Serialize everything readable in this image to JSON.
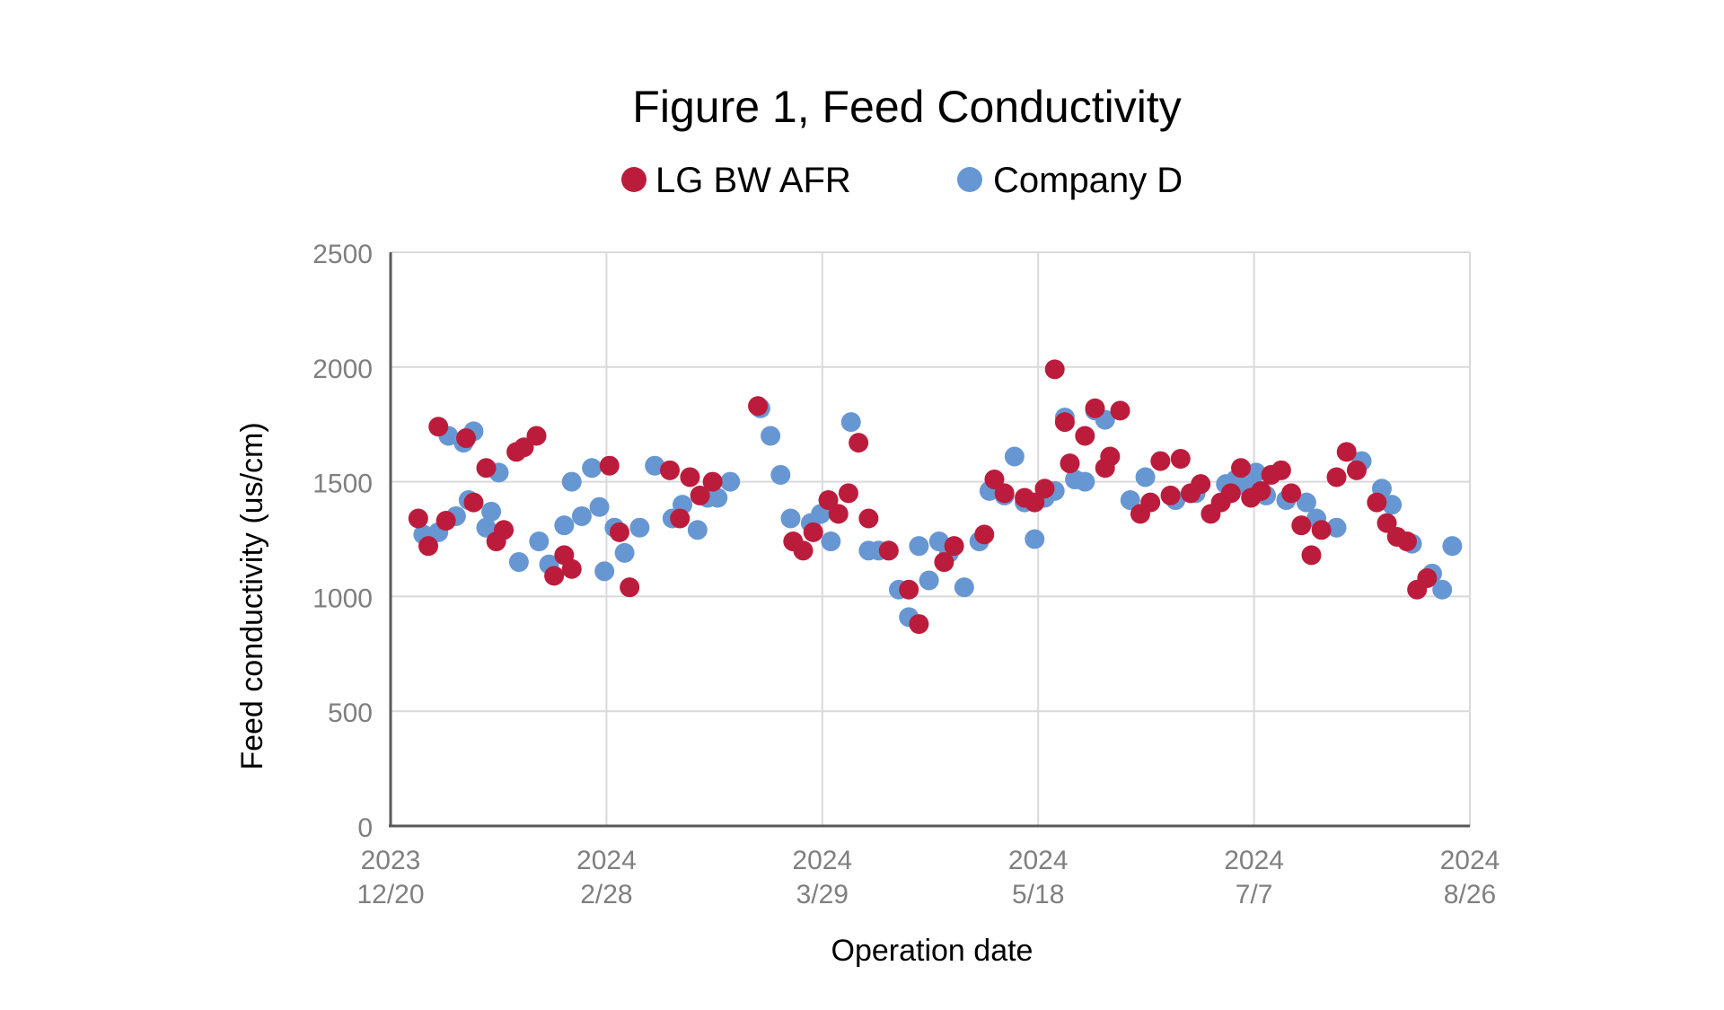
{
  "chart_data": {
    "type": "scatter",
    "title": "Figure 1, Feed Conductivity",
    "xlabel": "Operation date",
    "ylabel": "Feed conductivity (us/cm)",
    "x_ticks": [
      {
        "top": "2023",
        "bottom": "12/20"
      },
      {
        "top": "2024",
        "bottom": "2/28"
      },
      {
        "top": "2024",
        "bottom": "3/29"
      },
      {
        "top": "2024",
        "bottom": "5/18"
      },
      {
        "top": "2024",
        "bottom": "7/7"
      },
      {
        "top": "2024",
        "bottom": "8/26"
      }
    ],
    "y_ticks": [
      "0",
      "500",
      "1000",
      "1500",
      "2000",
      "2500"
    ],
    "ylim": [
      0,
      2500
    ],
    "grid": true,
    "legend_position": "top-center",
    "series": [
      {
        "name": "Company D",
        "color": "#6797d3",
        "points": [
          [
            1.3,
            1270
          ],
          [
            1.9,
            1280
          ],
          [
            2.3,
            1700
          ],
          [
            2.6,
            1350
          ],
          [
            2.9,
            1670
          ],
          [
            3.1,
            1420
          ],
          [
            3.3,
            1720
          ],
          [
            3.8,
            1300
          ],
          [
            4.0,
            1370
          ],
          [
            4.3,
            1540
          ],
          [
            5.1,
            1150
          ],
          [
            5.9,
            1240
          ],
          [
            6.3,
            1140
          ],
          [
            6.9,
            1310
          ],
          [
            7.2,
            1500
          ],
          [
            7.6,
            1350
          ],
          [
            8.0,
            1560
          ],
          [
            8.3,
            1390
          ],
          [
            8.5,
            1110
          ],
          [
            8.9,
            1300
          ],
          [
            9.3,
            1190
          ],
          [
            9.9,
            1300
          ],
          [
            10.5,
            1570
          ],
          [
            11.2,
            1340
          ],
          [
            11.6,
            1400
          ],
          [
            12.2,
            1290
          ],
          [
            12.6,
            1430
          ],
          [
            13.0,
            1430
          ],
          [
            13.5,
            1500
          ],
          [
            14.7,
            1820
          ],
          [
            15.1,
            1700
          ],
          [
            15.5,
            1530
          ],
          [
            15.9,
            1340
          ],
          [
            16.7,
            1320
          ],
          [
            17.1,
            1360
          ],
          [
            17.5,
            1240
          ],
          [
            18.3,
            1760
          ],
          [
            19.0,
            1200
          ],
          [
            19.4,
            1200
          ],
          [
            19.8,
            1200
          ],
          [
            20.2,
            1030
          ],
          [
            20.6,
            910
          ],
          [
            21.0,
            1220
          ],
          [
            21.4,
            1070
          ],
          [
            21.8,
            1240
          ],
          [
            22.2,
            1190
          ],
          [
            22.8,
            1040
          ],
          [
            23.4,
            1240
          ],
          [
            23.8,
            1460
          ],
          [
            24.4,
            1440
          ],
          [
            24.8,
            1610
          ],
          [
            25.2,
            1410
          ],
          [
            25.6,
            1250
          ],
          [
            26.0,
            1430
          ],
          [
            26.4,
            1460
          ],
          [
            26.8,
            1780
          ],
          [
            27.2,
            1510
          ],
          [
            27.6,
            1500
          ],
          [
            28.0,
            1810
          ],
          [
            28.4,
            1770
          ],
          [
            29.4,
            1420
          ],
          [
            30.0,
            1520
          ],
          [
            31.2,
            1420
          ],
          [
            32.0,
            1450
          ],
          [
            33.2,
            1490
          ],
          [
            33.6,
            1510
          ],
          [
            34.0,
            1480
          ],
          [
            34.4,
            1540
          ],
          [
            34.8,
            1440
          ],
          [
            35.6,
            1420
          ],
          [
            36.4,
            1410
          ],
          [
            36.8,
            1340
          ],
          [
            37.6,
            1300
          ],
          [
            38.6,
            1590
          ],
          [
            39.4,
            1470
          ],
          [
            39.8,
            1400
          ],
          [
            40.6,
            1230
          ],
          [
            41.4,
            1100
          ],
          [
            41.8,
            1030
          ],
          [
            42.2,
            1220
          ]
        ]
      },
      {
        "name": "LG BW AFR",
        "color": "#bc1c3c",
        "points": [
          [
            1.1,
            1340
          ],
          [
            1.5,
            1220
          ],
          [
            1.9,
            1740
          ],
          [
            2.2,
            1330
          ],
          [
            3.0,
            1690
          ],
          [
            3.3,
            1410
          ],
          [
            3.8,
            1560
          ],
          [
            4.2,
            1240
          ],
          [
            4.5,
            1290
          ],
          [
            5.0,
            1630
          ],
          [
            5.3,
            1650
          ],
          [
            5.8,
            1700
          ],
          [
            6.5,
            1090
          ],
          [
            6.9,
            1180
          ],
          [
            7.2,
            1120
          ],
          [
            8.7,
            1570
          ],
          [
            9.1,
            1280
          ],
          [
            9.5,
            1040
          ],
          [
            11.1,
            1550
          ],
          [
            11.5,
            1340
          ],
          [
            11.9,
            1520
          ],
          [
            12.3,
            1440
          ],
          [
            12.8,
            1500
          ],
          [
            14.6,
            1830
          ],
          [
            16.0,
            1240
          ],
          [
            16.4,
            1200
          ],
          [
            16.8,
            1280
          ],
          [
            17.4,
            1420
          ],
          [
            17.8,
            1360
          ],
          [
            18.2,
            1450
          ],
          [
            18.6,
            1670
          ],
          [
            19.0,
            1340
          ],
          [
            19.8,
            1200
          ],
          [
            20.6,
            1030
          ],
          [
            21.0,
            880
          ],
          [
            22.0,
            1150
          ],
          [
            22.4,
            1220
          ],
          [
            23.6,
            1270
          ],
          [
            24.0,
            1510
          ],
          [
            24.4,
            1450
          ],
          [
            25.2,
            1430
          ],
          [
            25.6,
            1410
          ],
          [
            26.0,
            1470
          ],
          [
            26.4,
            1990
          ],
          [
            26.8,
            1760
          ],
          [
            27.0,
            1580
          ],
          [
            27.6,
            1700
          ],
          [
            28.0,
            1820
          ],
          [
            28.4,
            1560
          ],
          [
            28.6,
            1610
          ],
          [
            29.0,
            1810
          ],
          [
            29.8,
            1360
          ],
          [
            30.2,
            1410
          ],
          [
            30.6,
            1590
          ],
          [
            31.0,
            1440
          ],
          [
            31.4,
            1600
          ],
          [
            31.8,
            1450
          ],
          [
            32.2,
            1490
          ],
          [
            32.6,
            1360
          ],
          [
            33.0,
            1410
          ],
          [
            33.4,
            1450
          ],
          [
            33.8,
            1560
          ],
          [
            34.2,
            1430
          ],
          [
            34.6,
            1460
          ],
          [
            35.0,
            1530
          ],
          [
            35.4,
            1550
          ],
          [
            35.8,
            1450
          ],
          [
            36.2,
            1310
          ],
          [
            36.6,
            1180
          ],
          [
            37.0,
            1290
          ],
          [
            37.6,
            1520
          ],
          [
            38.0,
            1630
          ],
          [
            38.4,
            1550
          ],
          [
            39.2,
            1410
          ],
          [
            39.6,
            1320
          ],
          [
            40.0,
            1260
          ],
          [
            40.4,
            1240
          ],
          [
            40.8,
            1030
          ],
          [
            41.2,
            1080
          ]
        ]
      }
    ],
    "legend": [
      {
        "name": "LG BW AFR",
        "color": "#bc1c3c"
      },
      {
        "name": "Company D",
        "color": "#6797d3"
      }
    ]
  }
}
